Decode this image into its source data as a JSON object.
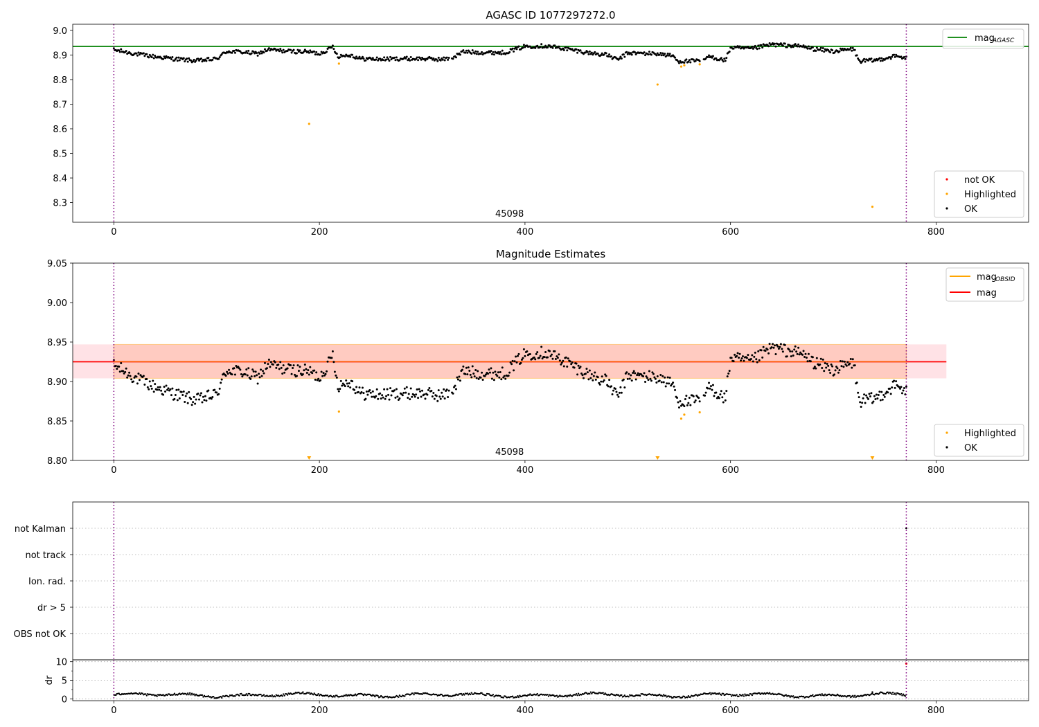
{
  "figure": {
    "top_title": "AGASC ID 1077297272.0",
    "mid_title": "Magnitude Estimates"
  },
  "chart_data": [
    {
      "id": "top",
      "type": "scatter",
      "title": "AGASC ID 1077297272.0",
      "xlim": [
        -40,
        890
      ],
      "ylim": [
        8.22,
        9.025
      ],
      "xticks": [
        0,
        200,
        400,
        600,
        800
      ],
      "yticks": [
        8.3,
        8.4,
        8.5,
        8.6,
        8.7,
        8.8,
        8.9,
        9.0
      ],
      "ytick_labels": [
        "8.3",
        "8.4",
        "8.5",
        "8.6",
        "8.7",
        "8.8",
        "8.9",
        "9.0"
      ],
      "obsid_label": "45098",
      "obsid_x": 385,
      "obs_bounds": [
        0,
        771
      ],
      "hline": {
        "name": "mag",
        "sub": "AGASC",
        "value": 8.935,
        "color": "#008000"
      },
      "legend_lines": [
        {
          "name": "mag",
          "sub": "AGASC",
          "color": "#008000"
        }
      ],
      "legend_points": [
        {
          "name": "not OK",
          "color": "#ff0000"
        },
        {
          "name": "Highlighted",
          "color": "#ffa500"
        },
        {
          "name": "OK",
          "color": "#000000"
        }
      ],
      "highlighted": [
        [
          190,
          8.62
        ],
        [
          219,
          8.865
        ],
        [
          529,
          8.78
        ],
        [
          552,
          8.853
        ],
        [
          555,
          8.858
        ],
        [
          570,
          8.862
        ],
        [
          738,
          8.283
        ]
      ]
    },
    {
      "id": "mid",
      "type": "scatter",
      "title": "Magnitude Estimates",
      "xlim": [
        -40,
        890
      ],
      "ylim": [
        8.8,
        9.05
      ],
      "xticks": [
        0,
        200,
        400,
        600,
        800
      ],
      "yticks": [
        8.8,
        8.85,
        8.9,
        8.95,
        9.0,
        9.05
      ],
      "ytick_labels": [
        "8.80",
        "8.85",
        "8.90",
        "8.95",
        "9.00",
        "9.05"
      ],
      "obsid_label": "45098",
      "obsid_x": 385,
      "obs_bounds": [
        0,
        771
      ],
      "band": {
        "x": [
          -40,
          810
        ],
        "y": [
          8.904,
          8.947
        ],
        "color": "#ffb6c1"
      },
      "band_obsid": {
        "x": [
          0,
          771
        ],
        "y": [
          8.904,
          8.947
        ],
        "color": "#ffa07a"
      },
      "hline": {
        "name": "mag",
        "value": 8.925,
        "x": [
          -40,
          810
        ],
        "color": "#ff0000"
      },
      "legend_lines": [
        {
          "name": "mag",
          "sub": "OBSID",
          "color": "#ffa500"
        },
        {
          "name": "mag",
          "color": "#ff0000"
        }
      ],
      "legend_points": [
        {
          "name": "Highlighted",
          "color": "#ffa500"
        },
        {
          "name": "OK",
          "color": "#000000"
        }
      ],
      "highlighted": [
        [
          219,
          8.862
        ],
        [
          552,
          8.853
        ],
        [
          555,
          8.858
        ],
        [
          570,
          8.861
        ]
      ],
      "offscale_markers_x": [
        190,
        529,
        738
      ]
    },
    {
      "id": "flags",
      "type": "scatter",
      "xlim": [
        -40,
        890
      ],
      "categories": [
        "not Kalman",
        "not track",
        "Ion. rad.",
        "dr > 5",
        "OBS not OK"
      ],
      "obs_bounds": [
        0,
        771
      ],
      "flagged": [
        {
          "category": "not Kalman",
          "x": 771
        }
      ]
    },
    {
      "id": "dr",
      "type": "scatter",
      "ylabel": "dr",
      "xlim": [
        -40,
        890
      ],
      "ylim": [
        -0.5,
        10.5
      ],
      "xticks": [
        0,
        200,
        400,
        600,
        800
      ],
      "yticks": [
        0,
        5,
        10
      ],
      "ytick_labels": [
        "0",
        "5",
        "10"
      ],
      "obs_bounds": [
        0,
        771
      ],
      "n_points": 771,
      "dr_typical": 1.0,
      "outliers": [
        [
          771,
          9.5
        ],
        [
          738,
          1.8
        ]
      ]
    }
  ]
}
